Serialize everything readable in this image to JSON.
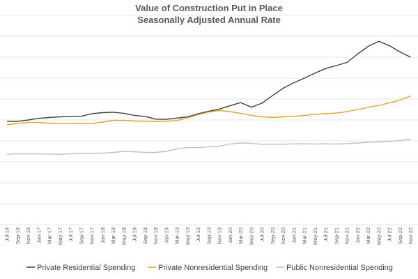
{
  "chart_data": {
    "type": "line",
    "title": "Value of Construction Put in Place",
    "subtitle": "Seasonally Adjusted Annual Rate",
    "xlabel": "",
    "ylabel": "",
    "grid": true,
    "legend_position": "bottom",
    "ylim": [
      0,
      1000
    ],
    "x": [
      "Jul-16",
      "Sep-16",
      "Nov-16",
      "Jan-17",
      "Mar-17",
      "May-17",
      "Jul-17",
      "Sep-17",
      "Nov-17",
      "Jan-18",
      "Mar-18",
      "May-18",
      "Jul-18",
      "Sep-18",
      "Nov-18",
      "Jan-19",
      "Mar-19",
      "May-19",
      "Jul-19",
      "Sep-19",
      "Nov-19",
      "Jan-20",
      "Mar-20",
      "May-20",
      "Jul-20",
      "Sep-20",
      "Nov-20",
      "Jan-21",
      "Mar-21",
      "May-21",
      "Jul-21",
      "Sep-21",
      "Nov-21",
      "Jan-22",
      "Mar-22",
      "May-22",
      "Jul-22",
      "Sep-22",
      "Nov-22"
    ],
    "series": [
      {
        "name": "Private Residential Spending",
        "color": "#404040",
        "values": [
          493,
          493,
          500,
          508,
          512,
          515,
          516,
          518,
          530,
          535,
          537,
          532,
          522,
          517,
          504,
          503,
          509,
          515,
          530,
          542,
          552,
          568,
          583,
          561,
          580,
          617,
          652,
          678,
          700,
          724,
          746,
          760,
          775,
          815,
          852,
          876,
          855,
          825,
          800
        ]
      },
      {
        "name": "Private Nonresidential Spending",
        "color": "#e3a21a",
        "values": [
          477,
          483,
          488,
          488,
          485,
          484,
          483,
          482,
          483,
          490,
          498,
          498,
          495,
          494,
          492,
          494,
          497,
          510,
          525,
          538,
          545,
          540,
          532,
          522,
          515,
          512,
          515,
          517,
          522,
          527,
          530,
          533,
          540,
          550,
          560,
          570,
          582,
          595,
          615
        ]
      },
      {
        "name": "Public Nonresidential Spending",
        "color": "#bfbfbf",
        "values": [
          336,
          338,
          338,
          338,
          337,
          336,
          338,
          340,
          340,
          342,
          345,
          350,
          348,
          345,
          345,
          350,
          362,
          368,
          368,
          372,
          375,
          385,
          390,
          388,
          384,
          384,
          384,
          386,
          386,
          385,
          386,
          385,
          387,
          390,
          393,
          395,
          398,
          402,
          408
        ]
      }
    ]
  }
}
